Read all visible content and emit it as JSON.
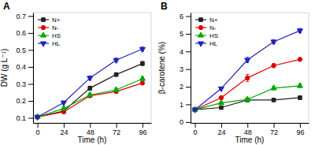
{
  "chart_data": [
    {
      "type": "line",
      "title": "A",
      "x_label": "Time (h)",
      "y_label": "DW (g L⁻¹)",
      "x": [
        0,
        24,
        48,
        72,
        96
      ],
      "xlim": [
        -4,
        104
      ],
      "xticks": [
        0,
        24,
        48,
        72,
        96
      ],
      "ylim": [
        0.07,
        0.72
      ],
      "yticks": [
        0.1,
        0.2,
        0.3,
        0.4,
        0.5,
        0.6,
        0.7
      ],
      "grid": false,
      "legend": "upper left",
      "series": [
        {
          "name": "N+",
          "color": "#222222",
          "marker": "square",
          "values": [
            0.105,
            0.14,
            0.275,
            0.355,
            0.42
          ],
          "yerr": [
            0.004,
            0.008,
            0.012,
            0.01,
            0.012
          ]
        },
        {
          "name": "N-",
          "color": "#dd0000",
          "marker": "circle",
          "values": [
            0.105,
            0.135,
            0.23,
            0.255,
            0.305
          ],
          "yerr": [
            0.004,
            0.007,
            0.01,
            0.01,
            0.01
          ]
        },
        {
          "name": "HS",
          "color": "#00aa00",
          "marker": "triangle-up",
          "values": [
            0.105,
            0.155,
            0.235,
            0.265,
            0.33
          ],
          "yerr": [
            0.004,
            0.008,
            0.01,
            0.01,
            0.012
          ]
        },
        {
          "name": "HL",
          "color": "#2222bb",
          "marker": "triangle-down",
          "values": [
            0.105,
            0.19,
            0.335,
            0.44,
            0.505
          ],
          "yerr": [
            0.004,
            0.008,
            0.012,
            0.012,
            0.012
          ]
        }
      ]
    },
    {
      "type": "line",
      "title": "B",
      "x_label": "Time (h)",
      "y_label": "β-carotene (%)",
      "x": [
        0,
        24,
        48,
        72,
        96
      ],
      "xlim": [
        -4,
        104
      ],
      "xticks": [
        0,
        24,
        48,
        72,
        96
      ],
      "ylim": [
        -0.05,
        6.2
      ],
      "yticks": [
        0,
        1,
        2,
        3,
        4,
        5,
        6
      ],
      "grid": false,
      "legend": "upper left",
      "series": [
        {
          "name": "N+",
          "color": "#222222",
          "marker": "square",
          "values": [
            0.7,
            0.82,
            1.25,
            1.25,
            1.38
          ],
          "yerr": [
            0.03,
            0.04,
            0.08,
            0.06,
            0.06
          ]
        },
        {
          "name": "N-",
          "color": "#dd0000",
          "marker": "circle",
          "values": [
            0.7,
            1.38,
            2.5,
            3.2,
            3.55
          ],
          "yerr": [
            0.03,
            0.08,
            0.2,
            0.12,
            0.1
          ]
        },
        {
          "name": "HS",
          "color": "#00aa00",
          "marker": "triangle-up",
          "values": [
            0.7,
            1.08,
            1.28,
            1.92,
            2.05
          ],
          "yerr": [
            0.03,
            0.06,
            0.08,
            0.1,
            0.1
          ]
        },
        {
          "name": "HL",
          "color": "#2222bb",
          "marker": "triangle-down",
          "values": [
            0.7,
            1.9,
            3.52,
            4.55,
            5.18
          ],
          "yerr": [
            0.03,
            0.08,
            0.15,
            0.12,
            0.12
          ]
        }
      ]
    }
  ]
}
